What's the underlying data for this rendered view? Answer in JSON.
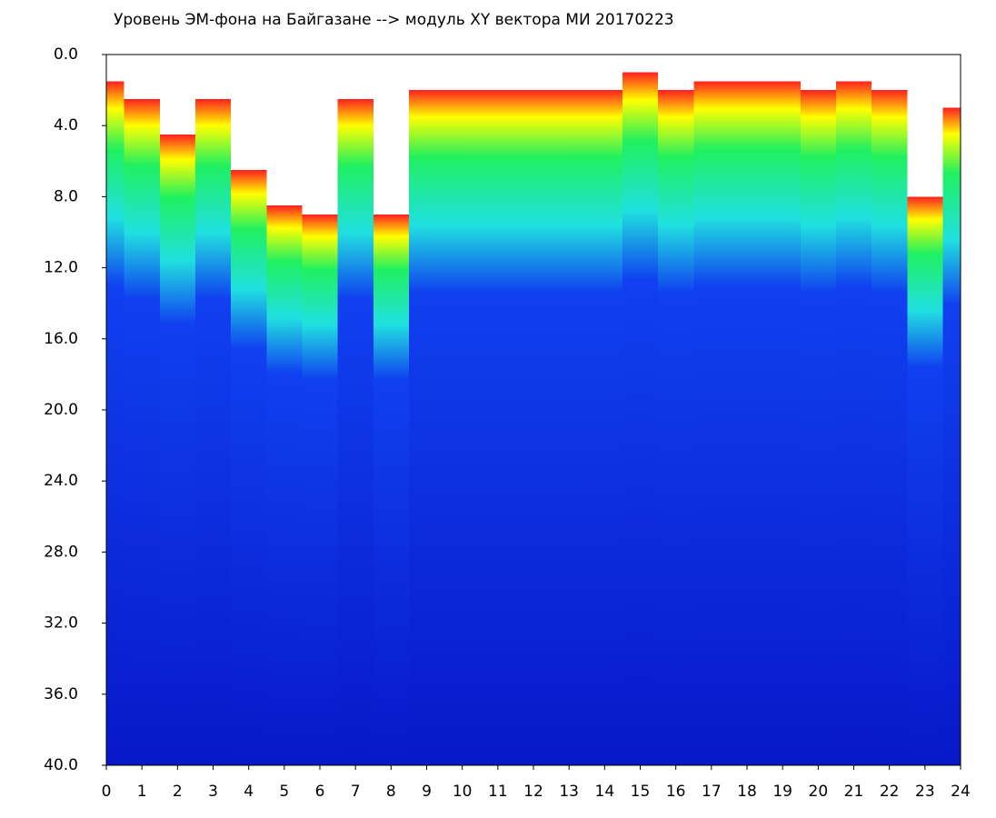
{
  "chart_data": {
    "type": "spectrogram",
    "title": "Уровень ЭМ-фона на Байгазане  -->  модуль XY вектора МИ  20170223",
    "x": [
      0,
      1,
      2,
      3,
      4,
      5,
      6,
      7,
      8,
      9,
      10,
      11,
      12,
      13,
      14,
      15,
      16,
      17,
      18,
      19,
      20,
      21,
      22,
      23,
      24
    ],
    "values": [
      1.5,
      2.5,
      4.5,
      2.5,
      6.5,
      8.5,
      9,
      2.5,
      9,
      2,
      2,
      2,
      2,
      2,
      2,
      1,
      2,
      1.5,
      1.5,
      1.5,
      2,
      1.5,
      2,
      8,
      3
    ],
    "colors": [
      "#ff2020",
      "#ffff00",
      "#20f060",
      "#20e0e0",
      "#1040f0",
      "#0818c8"
    ],
    "xlim": [
      0,
      24
    ],
    "xticks": [
      0,
      1,
      2,
      3,
      4,
      5,
      6,
      7,
      8,
      9,
      10,
      11,
      12,
      13,
      14,
      15,
      16,
      17,
      18,
      19,
      20,
      21,
      22,
      23,
      24
    ],
    "ylim": [
      0,
      40
    ],
    "yinverted": true,
    "yticks": [
      {
        "value": 0,
        "label": "0.0"
      },
      {
        "value": 4,
        "label": "4.0"
      },
      {
        "value": 8,
        "label": "8.0"
      },
      {
        "value": 12,
        "label": "12.0"
      },
      {
        "value": 16,
        "label": "16.0"
      },
      {
        "value": 20,
        "label": "20.0"
      },
      {
        "value": 24,
        "label": "24.0"
      },
      {
        "value": 28,
        "label": "28.0"
      },
      {
        "value": 32,
        "label": "32.0"
      },
      {
        "value": 36,
        "label": "36.0"
      },
      {
        "value": 40,
        "label": "40.0"
      }
    ]
  }
}
